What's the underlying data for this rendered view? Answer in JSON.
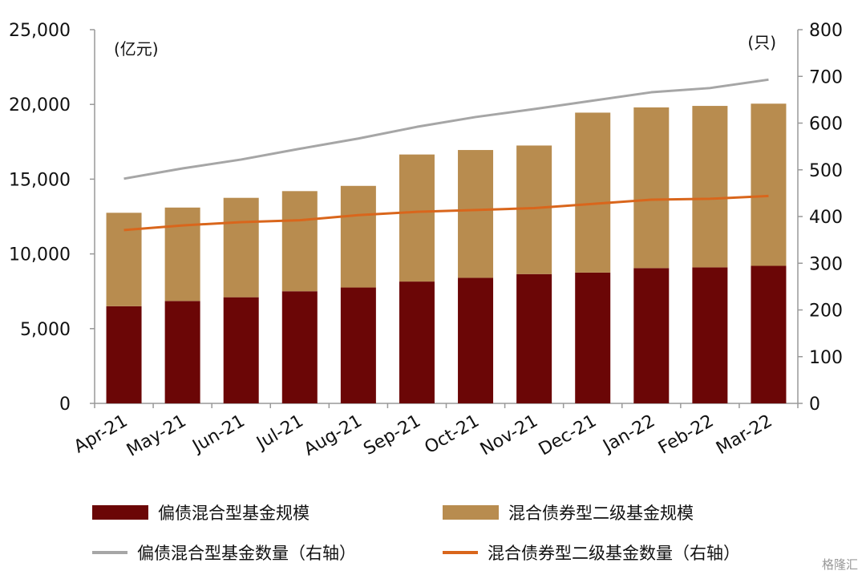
{
  "chart_data": {
    "type": "bar",
    "stacked": true,
    "categories": [
      "Apr-21",
      "May-21",
      "Jun-21",
      "Jul-21",
      "Aug-21",
      "Sep-21",
      "Oct-21",
      "Nov-21",
      "Dec-21",
      "Jan-22",
      "Feb-22",
      "Mar-22"
    ],
    "left_axis": {
      "unit": "(亿元)",
      "ylim": [
        0,
        25000
      ],
      "ticks": [
        "0",
        "5,000",
        "10,000",
        "15,000",
        "20,000",
        "25,000"
      ]
    },
    "right_axis": {
      "unit": "(只)",
      "ylim": [
        0,
        800
      ],
      "ticks": [
        "0",
        "100",
        "200",
        "300",
        "400",
        "500",
        "600",
        "700",
        "800"
      ]
    },
    "bar_series": [
      {
        "name": "偏债混合型基金规模",
        "color": "#6b0606",
        "values": [
          6500,
          6850,
          7100,
          7500,
          7750,
          8150,
          8400,
          8650,
          8750,
          9050,
          9100,
          9200
        ]
      },
      {
        "name": "混合债券型二级基金规模",
        "color": "#b88c4f",
        "values": [
          6250,
          6250,
          6650,
          6700,
          6800,
          8500,
          8550,
          8600,
          10700,
          10750,
          10800,
          10850
        ]
      }
    ],
    "line_series": [
      {
        "name": "偏债混合型基金数量（右轴）",
        "color": "#a6a6a6",
        "axis": "right",
        "values": [
          481,
          503,
          522,
          545,
          567,
          592,
          613,
          630,
          648,
          666,
          675,
          693
        ]
      },
      {
        "name": "混合债券型二级基金数量（右轴）",
        "color": "#d9661c",
        "axis": "right",
        "values": [
          371,
          381,
          388,
          392,
          403,
          410,
          414,
          418,
          427,
          436,
          438,
          444
        ]
      }
    ],
    "legend_position": "bottom",
    "grid": false
  },
  "legend": {
    "bar1": "偏债混合型基金规模",
    "bar2": "混合债券型二级基金规模",
    "line1": "偏债混合型基金数量（右轴）",
    "line2": "混合债券型二级基金数量（右轴）"
  },
  "watermark": "格隆汇"
}
